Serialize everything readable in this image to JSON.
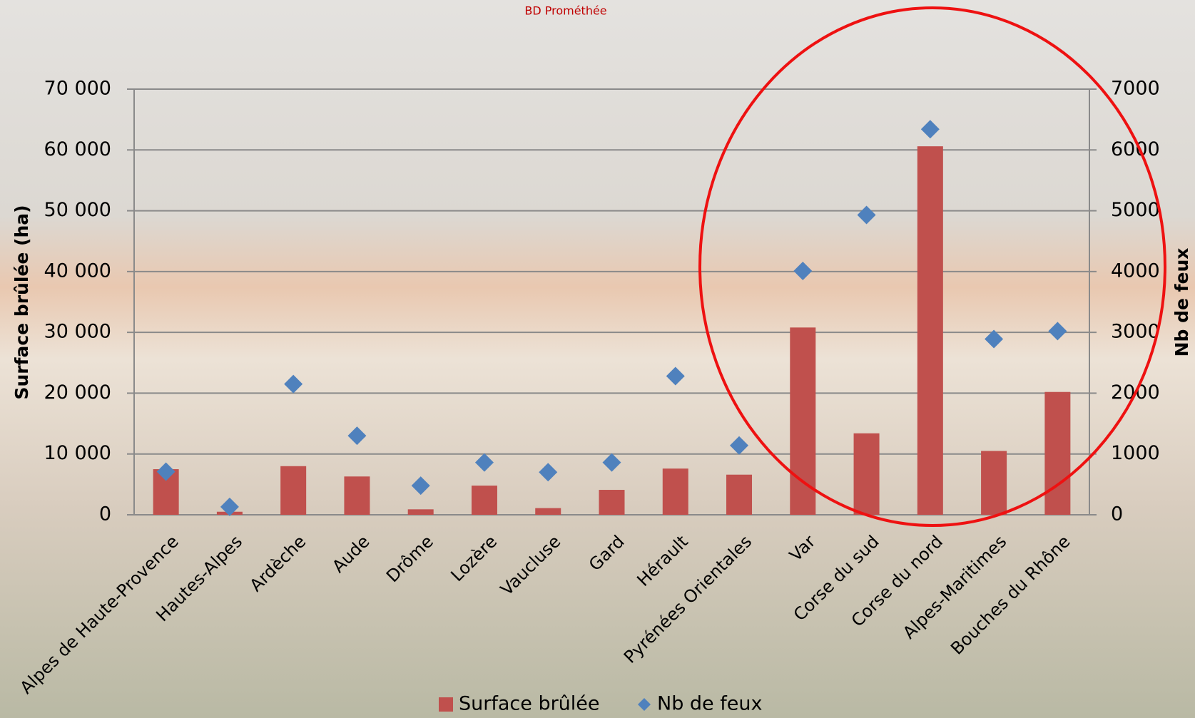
{
  "chart_data": {
    "type": "bar_scatter",
    "title": "BD Prométhée",
    "y_label": "Surface brûlée (ha)",
    "y2_label": "Nb de feux",
    "categories": [
      "Alpes de Haute-Provence",
      "Hautes-Alpes",
      "Ardèche",
      "Aude",
      "Drôme",
      "Lozère",
      "Vaucluse",
      "Gard",
      "Hérault",
      "Pyrénées Orientales",
      "Var",
      "Corse du sud",
      "Corse du nord",
      "Alpes-Maritimes",
      "Bouches du Rhône"
    ],
    "series": [
      {
        "name": "Surface brûlée",
        "color": "#c0504d",
        "values": [
          7500,
          500,
          8000,
          6300,
          900,
          4800,
          1100,
          4100,
          7600,
          6600,
          30800,
          13400,
          60600,
          10500,
          20200
        ]
      },
      {
        "name": "Nb de feux",
        "color": "#4f81bd",
        "axis": "y2",
        "values": [
          710,
          130,
          2150,
          1300,
          480,
          860,
          700,
          860,
          2280,
          1140,
          4010,
          4930,
          6340,
          2890,
          3020
        ]
      }
    ],
    "ylim": [
      0,
      70000
    ],
    "yticks": [
      {
        "value": 0,
        "label": "0"
      },
      {
        "value": 10000,
        "label": "10 000"
      },
      {
        "value": 20000,
        "label": "20 000"
      },
      {
        "value": 30000,
        "label": "30 000"
      },
      {
        "value": 40000,
        "label": "40 000"
      },
      {
        "value": 50000,
        "label": "50 000"
      },
      {
        "value": 60000,
        "label": "60 000"
      },
      {
        "value": 70000,
        "label": "70 000"
      }
    ],
    "y2lim": [
      0,
      7000
    ],
    "y2ticks": [
      0,
      1000,
      2000,
      3000,
      4000,
      5000,
      6000,
      7000
    ],
    "grid": true
  }
}
